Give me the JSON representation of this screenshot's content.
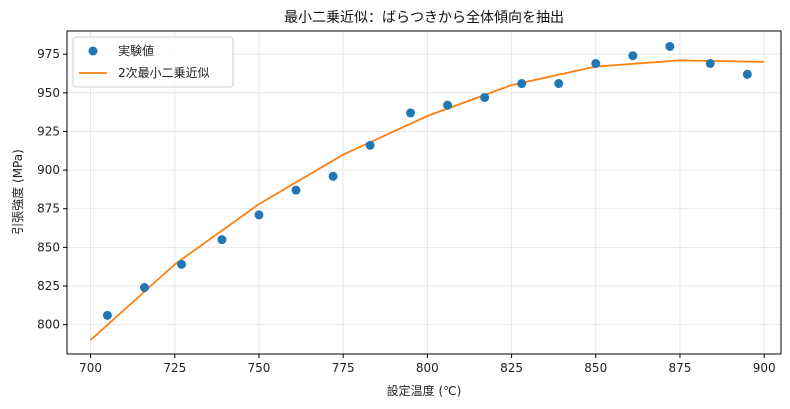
{
  "chart_data": {
    "type": "scatter",
    "title": "最小二乗近似：ばらつきから全体傾向を抽出",
    "xlabel": "設定温度 (℃)",
    "ylabel": "引張強度 (MPa)",
    "xlim": [
      693,
      905
    ],
    "ylim": [
      781,
      990
    ],
    "xticks": [
      700,
      725,
      750,
      775,
      800,
      825,
      850,
      875,
      900
    ],
    "yticks": [
      800,
      825,
      850,
      875,
      900,
      925,
      950,
      975
    ],
    "grid": true,
    "legend_position": "top-left",
    "series": [
      {
        "name": "実験値",
        "kind": "scatter",
        "color": "#1f77b4",
        "x": [
          705,
          716,
          727,
          739,
          750,
          761,
          772,
          783,
          795,
          806,
          817,
          828,
          839,
          850,
          861,
          872,
          884,
          895
        ],
        "y": [
          806,
          824,
          839,
          855,
          871,
          887,
          896,
          916,
          937,
          942,
          947,
          956,
          956,
          969,
          974,
          980,
          969,
          962
        ]
      },
      {
        "name": "2次最小二乗近似",
        "kind": "line",
        "color": "#ff7f0e",
        "x": [
          700,
          725,
          750,
          775,
          800,
          825,
          850,
          875,
          900
        ],
        "y": [
          790,
          839,
          878,
          910,
          935,
          955,
          967,
          971,
          970
        ]
      }
    ]
  }
}
